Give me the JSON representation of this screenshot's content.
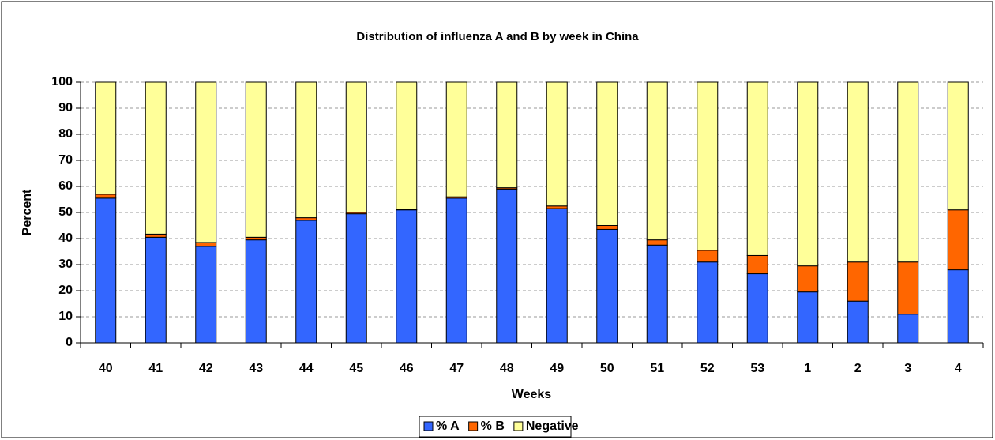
{
  "chart_data": {
    "type": "stacked_bar",
    "title": "Distribution of influenza A and B by week in China",
    "x_label": "Weeks",
    "y_label": "Percent",
    "categories": [
      "40",
      "41",
      "42",
      "43",
      "44",
      "45",
      "46",
      "47",
      "48",
      "49",
      "50",
      "51",
      "52",
      "53",
      "1",
      "2",
      "3",
      "4"
    ],
    "series": [
      {
        "name": "% A",
        "color": "#3366ff",
        "values": [
          55.5,
          40.5,
          37,
          39.5,
          47,
          49.5,
          51,
          55.5,
          59,
          51.5,
          43.5,
          37.5,
          31,
          26.5,
          19.5,
          16,
          11,
          28
        ]
      },
      {
        "name": "% B",
        "color": "#ff6600",
        "values": [
          1.5,
          1.2,
          1.5,
          1,
          1,
          0.5,
          0.3,
          0.5,
          0.5,
          1,
          1.5,
          2,
          4.5,
          7,
          10,
          15,
          20,
          23
        ]
      },
      {
        "name": "Negative",
        "color": "#ffff99",
        "values": [
          43,
          58.3,
          61.5,
          59.5,
          52,
          50,
          48.7,
          44,
          40.5,
          47.5,
          55,
          60.5,
          64.5,
          66.5,
          70.5,
          69,
          69,
          49
        ]
      }
    ],
    "ylim": [
      0,
      100
    ],
    "yticks": [
      0,
      10,
      20,
      30,
      40,
      50,
      60,
      70,
      80,
      90,
      100
    ],
    "grid": true,
    "legend": "bottom"
  }
}
